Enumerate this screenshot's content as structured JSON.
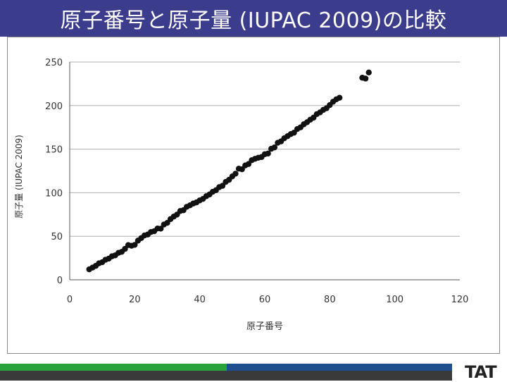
{
  "slide": {
    "title": "原子番号と原子量 (IUPAC 2009)の比較",
    "logo_text": "TAT"
  },
  "colors": {
    "title_bg": "#3c3c8c",
    "marker": "#111111",
    "grid": "#b0b0b0",
    "footer_green": "#2aa33a",
    "footer_blue": "#1f4f8f"
  },
  "chart_data": {
    "type": "scatter",
    "xlabel": "原子番号",
    "ylabel": "原子量 (IUPAC 2009)",
    "xlim": [
      0,
      120
    ],
    "ylim": [
      0,
      250
    ],
    "xticks": [
      0,
      20,
      40,
      60,
      80,
      100,
      120
    ],
    "yticks": [
      0,
      50,
      100,
      150,
      200,
      250
    ],
    "grid": "horizontal",
    "x": [
      6,
      7,
      8,
      9,
      10,
      11,
      12,
      13,
      14,
      15,
      16,
      17,
      18,
      19,
      20,
      21,
      22,
      23,
      24,
      25,
      26,
      27,
      28,
      29,
      30,
      31,
      32,
      33,
      34,
      35,
      36,
      37,
      38,
      39,
      40,
      41,
      42,
      43,
      44,
      45,
      46,
      47,
      48,
      49,
      50,
      51,
      52,
      53,
      54,
      55,
      56,
      57,
      58,
      59,
      60,
      61,
      62,
      63,
      64,
      65,
      66,
      67,
      68,
      69,
      70,
      71,
      72,
      73,
      74,
      75,
      76,
      77,
      78,
      79,
      80,
      81,
      82,
      83,
      90,
      91,
      92
    ],
    "y": [
      12.0,
      14.0,
      16.0,
      19.0,
      20.2,
      23.0,
      24.3,
      27.0,
      28.1,
      31.0,
      32.1,
      35.5,
      39.9,
      39.1,
      40.1,
      45.0,
      47.9,
      50.9,
      52.0,
      54.9,
      55.8,
      58.9,
      58.7,
      63.5,
      65.4,
      69.7,
      72.6,
      74.9,
      79.0,
      79.9,
      83.8,
      85.5,
      87.6,
      88.9,
      91.2,
      92.9,
      96.0,
      98.0,
      101.1,
      102.9,
      106.4,
      107.9,
      112.4,
      114.8,
      118.7,
      121.8,
      127.6,
      126.9,
      131.3,
      132.9,
      137.3,
      138.9,
      140.1,
      140.9,
      144.2,
      145.0,
      150.4,
      152.0,
      157.3,
      158.9,
      162.5,
      164.9,
      167.3,
      168.9,
      173.1,
      175.0,
      178.5,
      180.9,
      183.8,
      186.2,
      190.2,
      192.2,
      195.1,
      197.0,
      200.6,
      204.4,
      207.2,
      209.0,
      232.0,
      231.0,
      238.0
    ]
  }
}
